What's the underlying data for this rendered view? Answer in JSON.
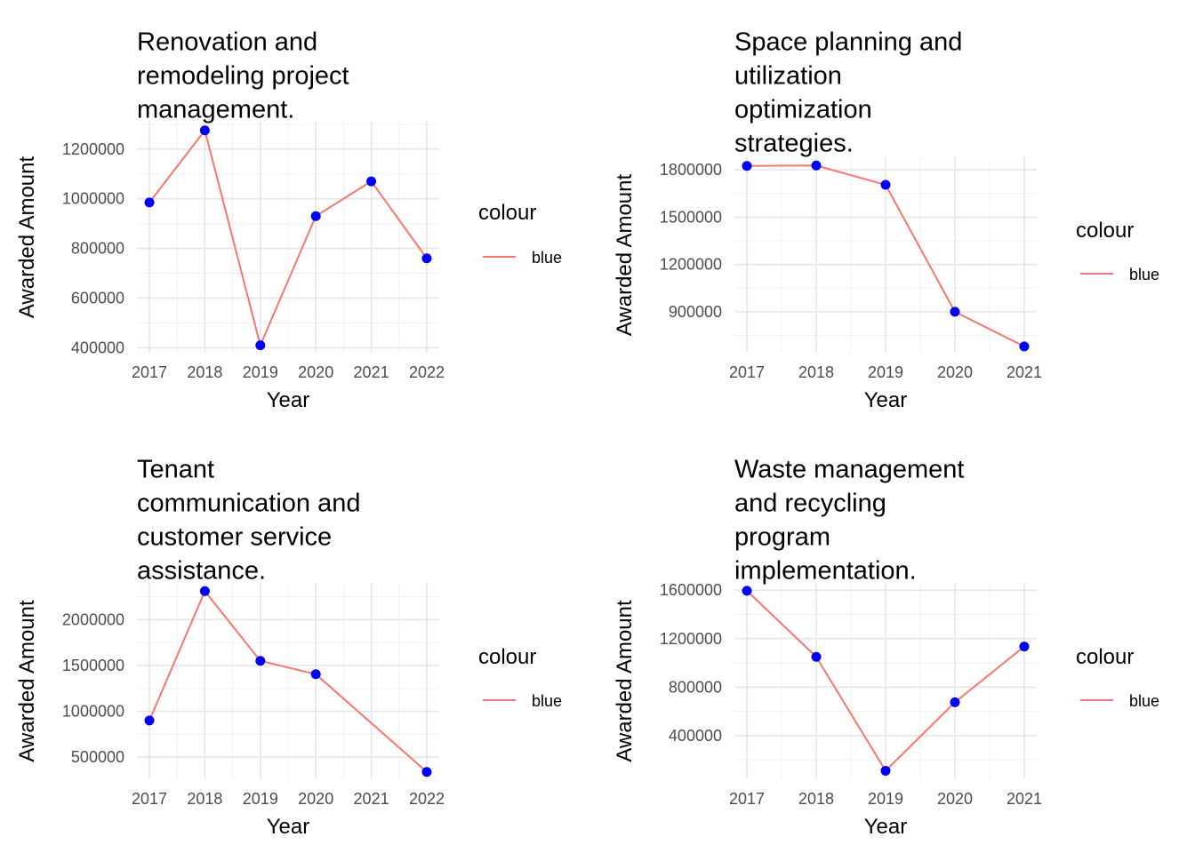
{
  "chart_data": [
    {
      "type": "line",
      "title": "Renovation and remodeling project management.",
      "title_lines": [
        "Renovation and",
        "remodeling project",
        "management."
      ],
      "xlabel": "Year",
      "ylabel": "Awarded Amount",
      "x": [
        2017,
        2018,
        2019,
        2020,
        2021,
        2022
      ],
      "x_ticks": [
        "2017",
        "2018",
        "2019",
        "2020",
        "2021",
        "2022"
      ],
      "y": [
        985000,
        1275000,
        410000,
        930000,
        1070000,
        760000
      ],
      "y_ticks": [
        400000,
        600000,
        800000,
        1000000,
        1200000
      ],
      "y_tick_labels": [
        "400000",
        "600000",
        "800000",
        "1000000",
        "1200000"
      ],
      "ylim": [
        380000,
        1310000
      ],
      "legend": {
        "title": "colour",
        "label": "blue",
        "position": "right"
      },
      "grid": true
    },
    {
      "type": "line",
      "title": "Space planning and utilization optimization strategies.",
      "title_lines": [
        "Space planning and",
        "utilization",
        "optimization",
        "strategies."
      ],
      "xlabel": "Year",
      "ylabel": "Awarded Amount",
      "x": [
        2017,
        2018,
        2019,
        2020,
        2021
      ],
      "x_ticks": [
        "2017",
        "2018",
        "2019",
        "2020",
        "2021"
      ],
      "y": [
        1825000,
        1828000,
        1705000,
        900000,
        680000
      ],
      "y_ticks": [
        900000,
        1200000,
        1500000,
        1800000
      ],
      "y_tick_labels": [
        "900000",
        "1200000",
        "1500000",
        "1800000"
      ],
      "ylim": [
        640000,
        1880000
      ],
      "legend": {
        "title": "colour",
        "label": "blue",
        "position": "right"
      },
      "grid": true
    },
    {
      "type": "line",
      "title": "Tenant communication and customer service assistance.",
      "title_lines": [
        "Tenant",
        "communication and",
        "customer service",
        "assistance."
      ],
      "xlabel": "Year",
      "ylabel": "Awarded Amount",
      "x": [
        2017,
        2018,
        2019,
        2020,
        2022
      ],
      "x_ticks": [
        "2017",
        "2018",
        "2019",
        "2020",
        "2021",
        "2022"
      ],
      "x_tick_values": [
        2017,
        2018,
        2019,
        2020,
        2021,
        2022
      ],
      "y": [
        900000,
        2310000,
        1550000,
        1405000,
        340000
      ],
      "y_ticks": [
        500000,
        1000000,
        1500000,
        2000000
      ],
      "y_tick_labels": [
        "500000",
        "1000000",
        "1500000",
        "2000000"
      ],
      "ylim": [
        260000,
        2400000
      ],
      "legend": {
        "title": "colour",
        "label": "blue",
        "position": "right"
      },
      "grid": true
    },
    {
      "type": "line",
      "title": "Waste management and recycling program implementation.",
      "title_lines": [
        "Waste management",
        "and recycling",
        "program",
        "implementation."
      ],
      "xlabel": "Year",
      "ylabel": "Awarded Amount",
      "x": [
        2017,
        2018,
        2019,
        2020,
        2021
      ],
      "x_ticks": [
        "2017",
        "2018",
        "2019",
        "2020",
        "2021"
      ],
      "y": [
        1595000,
        1050000,
        110000,
        675000,
        1135000
      ],
      "y_ticks": [
        400000,
        800000,
        1200000,
        1600000
      ],
      "y_tick_labels": [
        "400000",
        "800000",
        "1200000",
        "1600000"
      ],
      "ylim": [
        40000,
        1660000
      ],
      "legend": {
        "title": "colour",
        "label": "blue",
        "position": "right"
      },
      "grid": true
    }
  ],
  "colors": {
    "line": "#f8766d",
    "point": "#0000ff",
    "grid_major": "#e6e6e6",
    "grid_minor": "#f0f0f0"
  }
}
